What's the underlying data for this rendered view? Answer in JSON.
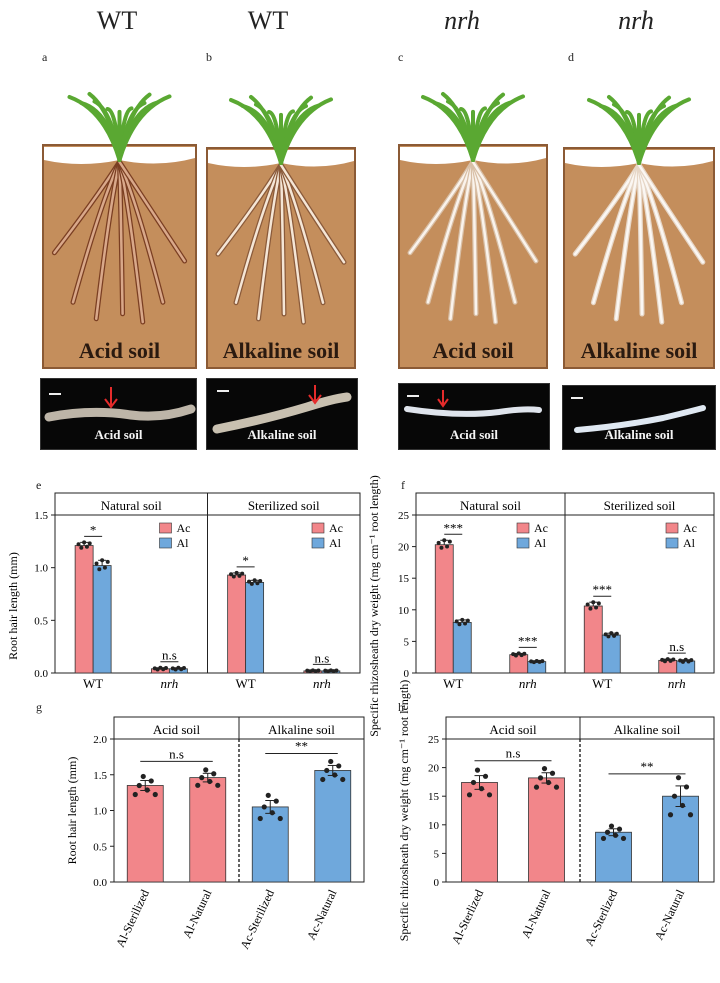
{
  "top_panels": [
    {
      "letter": "a",
      "genotype": "WT",
      "soil": "Acid soil",
      "photo_label": "Acid soil",
      "italic": false
    },
    {
      "letter": "b",
      "genotype": "WT",
      "soil": "Alkaline soil",
      "photo_label": "Alkaline soil",
      "italic": false
    },
    {
      "letter": "c",
      "genotype": "nrh",
      "soil": "Acid soil",
      "photo_label": "Acid soil",
      "italic": true
    },
    {
      "letter": "d",
      "genotype": "nrh",
      "soil": "Alkaline soil",
      "photo_label": "Alkaline soil",
      "italic": true
    }
  ],
  "colors": {
    "ac": "#f2868a",
    "al": "#6fa8dc",
    "soil": "#c48e5c",
    "soil_border": "#8b5a35",
    "leaf": "#5aa832"
  },
  "chart_data": [
    {
      "panel": "e",
      "type": "bar",
      "ylabel": "Root hair length (mm)",
      "ylim": [
        0,
        1.5
      ],
      "yticks": [
        "0.0",
        "0.5",
        "1.0",
        "1.5"
      ],
      "facets": [
        "Natural soil",
        "Sterilized soil"
      ],
      "categories": [
        "WT",
        "nrh"
      ],
      "legend": [
        "Ac",
        "Al"
      ],
      "series": [
        {
          "name": "Ac",
          "values": {
            "Natural soil": [
              1.21,
              0.04
            ],
            "Sterilized soil": [
              0.93,
              0.02
            ]
          }
        },
        {
          "name": "Al",
          "values": {
            "Natural soil": [
              1.02,
              0.04
            ],
            "Sterilized soil": [
              0.86,
              0.02
            ]
          }
        }
      ],
      "errors": {
        "Ac": {
          "Natural soil": [
            0.03,
            0.01
          ],
          "Sterilized soil": [
            0.02,
            0.005
          ]
        },
        "Al": {
          "Natural soil": [
            0.05,
            0.01
          ],
          "Sterilized soil": [
            0.02,
            0.005
          ]
        }
      },
      "significance": {
        "Natural soil": [
          "*",
          "n.s"
        ],
        "Sterilized soil": [
          "*",
          "n.s"
        ]
      }
    },
    {
      "panel": "f",
      "type": "bar",
      "ylabel": "Specific rhizosheath dry weight (mg cm⁻¹ root length)",
      "ylim": [
        0,
        25
      ],
      "yticks": [
        "0",
        "5",
        "10",
        "15",
        "20",
        "25"
      ],
      "facets": [
        "Natural soil",
        "Sterilized soil"
      ],
      "categories": [
        "WT",
        "nrh"
      ],
      "legend": [
        "Ac",
        "Al"
      ],
      "series": [
        {
          "name": "Ac",
          "values": {
            "Natural soil": [
              20.3,
              2.9
            ],
            "Sterilized soil": [
              10.6,
              2.0
            ]
          }
        },
        {
          "name": "Al",
          "values": {
            "Natural soil": [
              8.0,
              1.8
            ],
            "Sterilized soil": [
              6.0,
              1.9
            ]
          }
        }
      ],
      "errors": {
        "Ac": {
          "Natural soil": [
            0.7,
            0.2
          ],
          "Sterilized soil": [
            0.6,
            0.2
          ]
        },
        "Al": {
          "Natural soil": [
            0.4,
            0.1
          ],
          "Sterilized soil": [
            0.3,
            0.2
          ]
        }
      },
      "significance": {
        "Natural soil": [
          "***",
          "***"
        ],
        "Sterilized soil": [
          "***",
          "n.s"
        ]
      }
    },
    {
      "panel": "g",
      "type": "bar",
      "ylabel": "Root hair length (mm)",
      "ylim": [
        0,
        2.0
      ],
      "yticks": [
        "0.0",
        "0.5",
        "1.0",
        "1.5",
        "2.0"
      ],
      "facets": [
        "Acid soil",
        "Alkaline soil"
      ],
      "categories": [
        "Al-Sterilized",
        "Al-Natural",
        "Ac-Sterilized",
        "Ac-Natural"
      ],
      "values": [
        1.35,
        1.46,
        1.05,
        1.56
      ],
      "errors": [
        0.07,
        0.06,
        0.09,
        0.07
      ],
      "bar_color": [
        "ac",
        "ac",
        "al",
        "al"
      ],
      "significance": [
        "n.s",
        "**"
      ]
    },
    {
      "panel": "h",
      "type": "bar",
      "ylabel": "Specific rhizosheath dry weight (mg cm⁻¹ root length)",
      "ylim": [
        0,
        25
      ],
      "yticks": [
        "0",
        "5",
        "10",
        "15",
        "20",
        "25"
      ],
      "facets": [
        "Acid soil",
        "Alkaline soil"
      ],
      "categories": [
        "Al-Sterlized",
        "Al-Natural",
        "Ac-Sterlized",
        "Ac-Natural"
      ],
      "values": [
        17.4,
        18.2,
        8.7,
        15.0
      ],
      "errors": [
        1.2,
        0.9,
        0.6,
        1.8
      ],
      "bar_color": [
        "ac",
        "ac",
        "al",
        "al"
      ],
      "significance": [
        "n.s",
        "**"
      ]
    }
  ]
}
